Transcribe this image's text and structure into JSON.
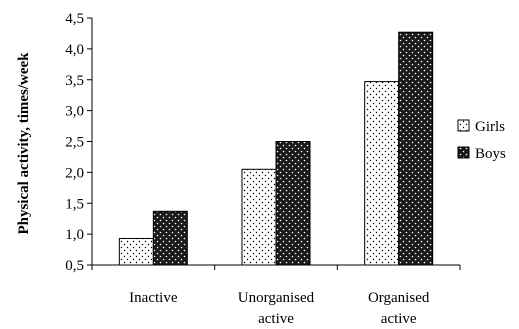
{
  "chart_data": {
    "type": "bar",
    "title": "",
    "xlabel": "",
    "ylabel": "Physical activity, times/week",
    "ylim": [
      0.5,
      4.5
    ],
    "yticks": [
      "0,5",
      "1,0",
      "1,5",
      "2,0",
      "2,5",
      "3,0",
      "3,5",
      "4,0",
      "4,5"
    ],
    "ytick_values": [
      0.5,
      1.0,
      1.5,
      2.0,
      2.5,
      3.0,
      3.5,
      4.0,
      4.5
    ],
    "categories": [
      [
        "Inactive"
      ],
      [
        "Unorganised",
        "active"
      ],
      [
        "Organised",
        "active"
      ]
    ],
    "series": [
      {
        "name": "Girls",
        "values": [
          0.93,
          2.05,
          3.47
        ],
        "fill": "#ffffff",
        "dot_color": "#000000",
        "pattern": "dots-on-white"
      },
      {
        "name": "Boys",
        "values": [
          1.37,
          2.5,
          4.27
        ],
        "fill": "#1a1a1a",
        "dot_color": "#ffffff",
        "pattern": "dots-on-black"
      }
    ],
    "grid": false,
    "legend_position": "right"
  }
}
